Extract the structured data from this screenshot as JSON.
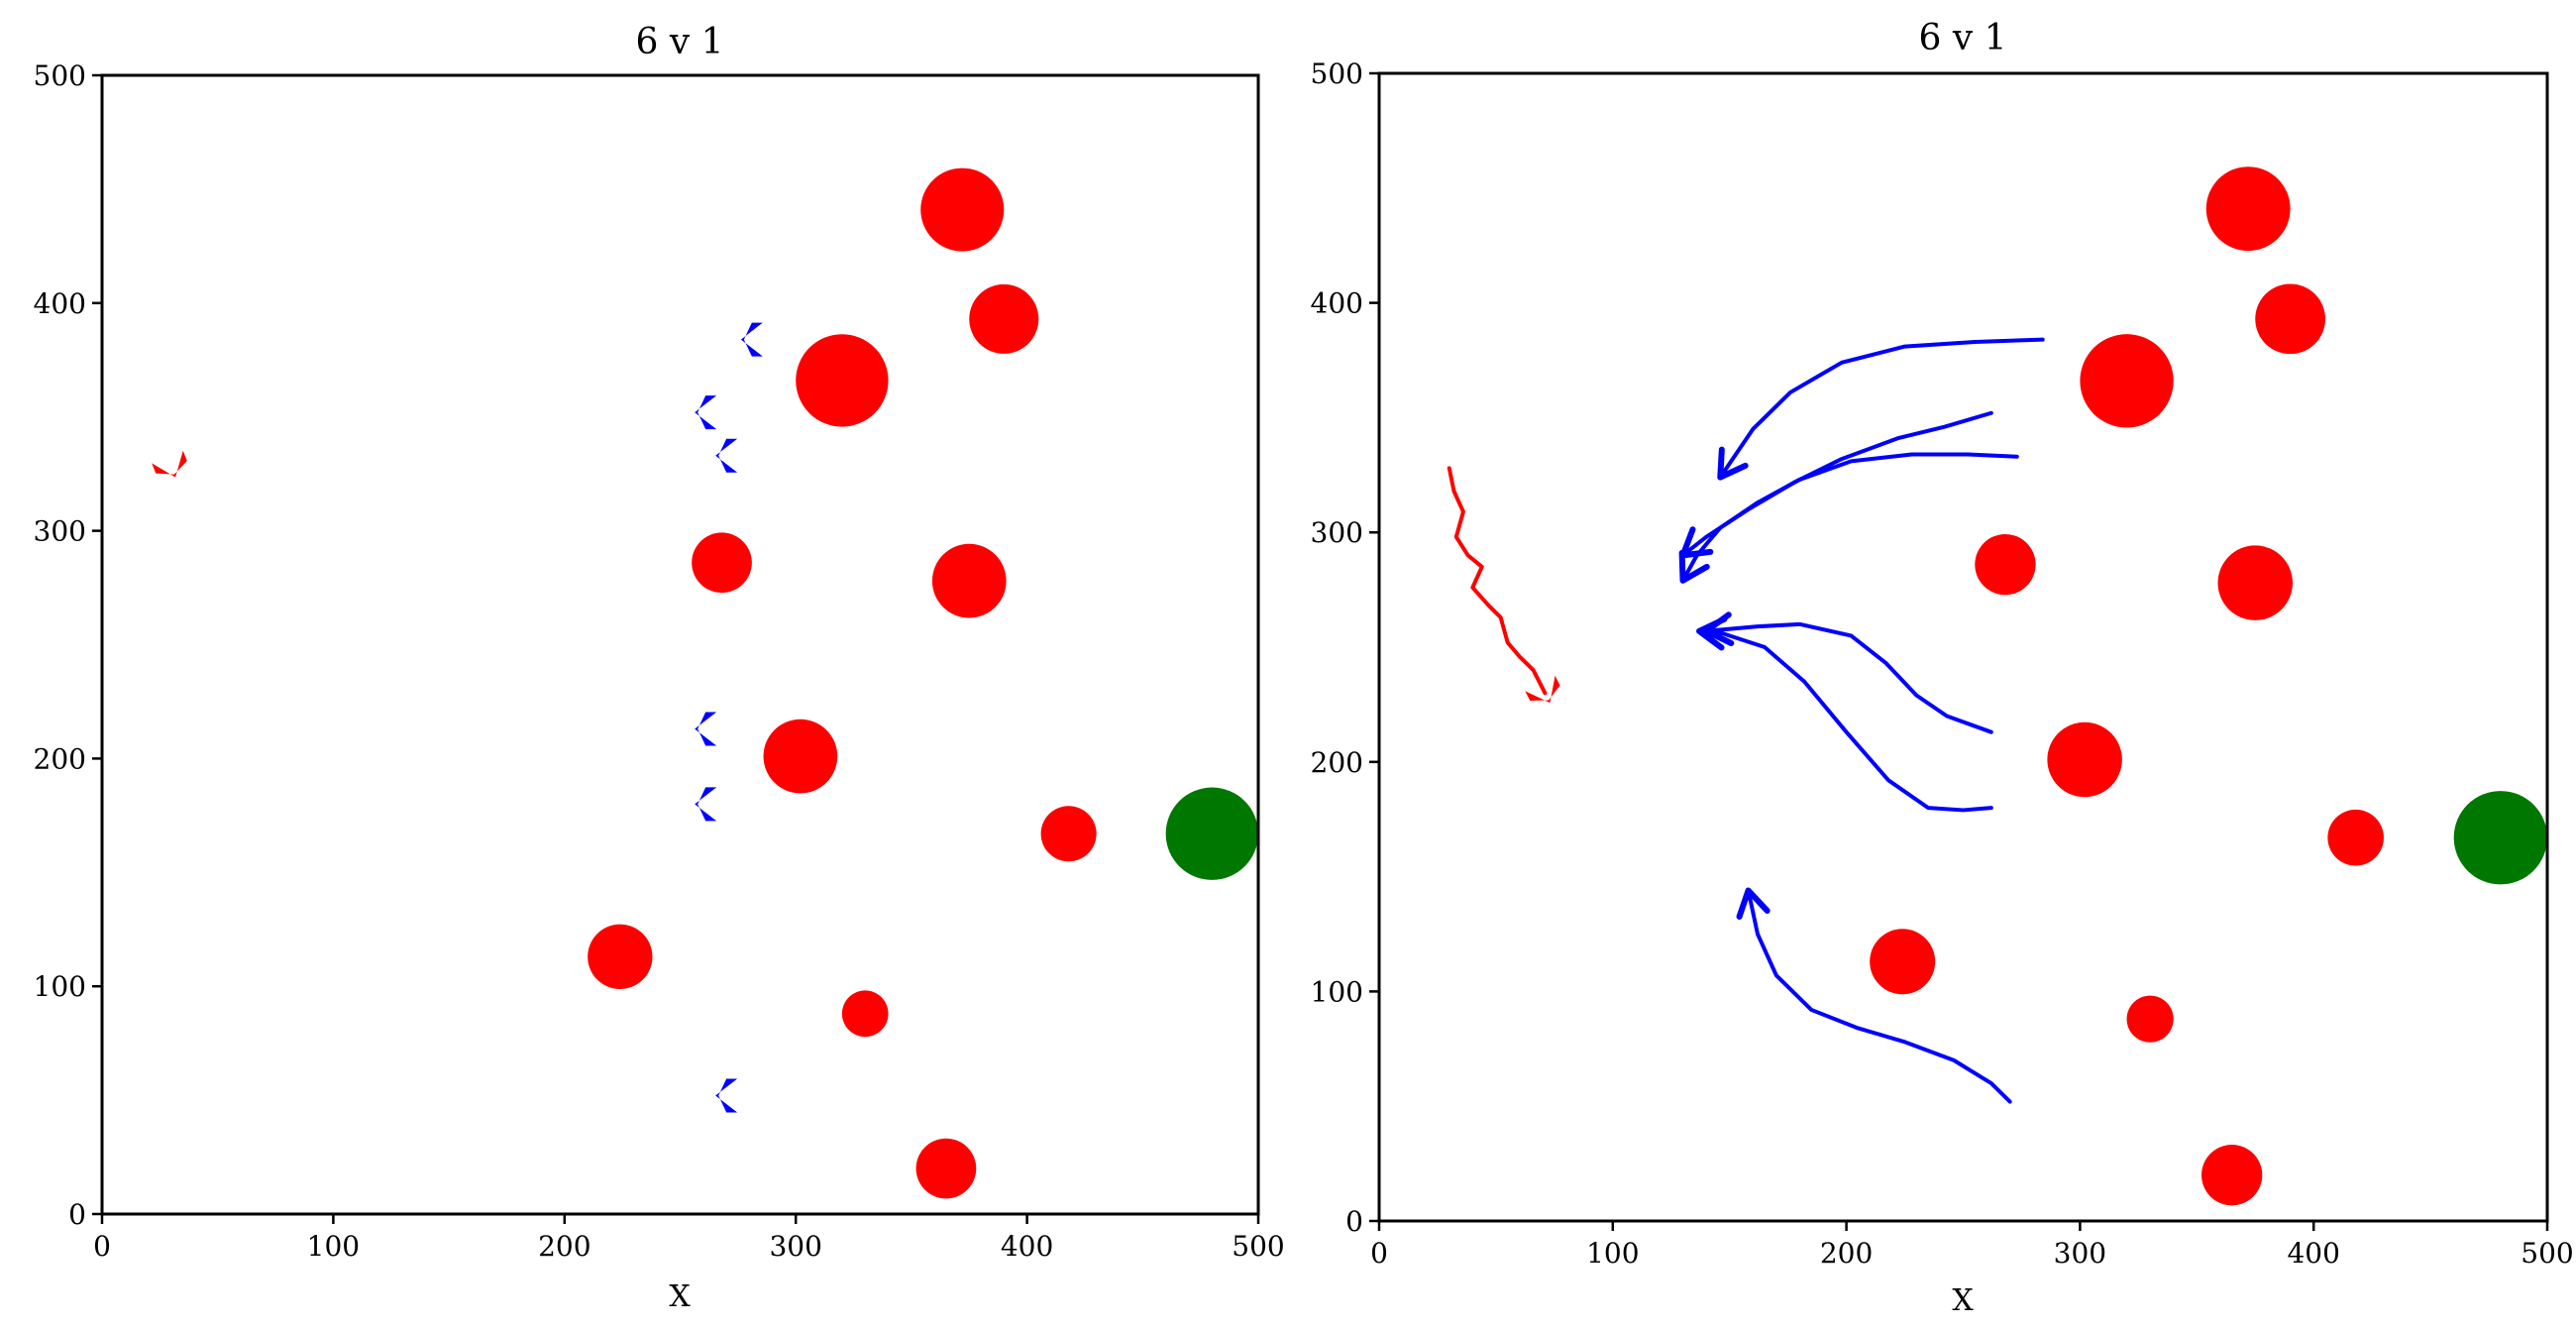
{
  "colors": {
    "obstacle": "#ff0000",
    "target": "#007800",
    "pursuer": "#0000ff",
    "evader": "#ff0000"
  },
  "chart_data": [
    {
      "type": "scatter",
      "title": "6 v 1",
      "xlabel": "X",
      "ylabel": "",
      "xlim": [
        0,
        500
      ],
      "ylim": [
        0,
        500
      ],
      "xticks": [
        "0",
        "100",
        "200",
        "300",
        "400",
        "500"
      ],
      "yticks": [
        "0",
        "100",
        "200",
        "300",
        "400",
        "500"
      ],
      "grid": false,
      "obstacles": [
        {
          "x": 372,
          "y": 441,
          "r": 18
        },
        {
          "x": 390,
          "y": 393,
          "r": 15
        },
        {
          "x": 320,
          "y": 366,
          "r": 20
        },
        {
          "x": 268,
          "y": 286,
          "r": 13
        },
        {
          "x": 375,
          "y": 278,
          "r": 16
        },
        {
          "x": 302,
          "y": 201,
          "r": 16
        },
        {
          "x": 418,
          "y": 167,
          "r": 12
        },
        {
          "x": 224,
          "y": 113,
          "r": 14
        },
        {
          "x": 330,
          "y": 88,
          "r": 10
        },
        {
          "x": 365,
          "y": 20,
          "r": 13
        }
      ],
      "target": {
        "x": 480,
        "y": 167,
        "r": 20
      },
      "pursuers": [
        {
          "x": 281,
          "y": 384
        },
        {
          "x": 261,
          "y": 352
        },
        {
          "x": 270,
          "y": 333
        },
        {
          "x": 261,
          "y": 213
        },
        {
          "x": 261,
          "y": 180
        },
        {
          "x": 270,
          "y": 52
        }
      ],
      "evader": {
        "x": 30,
        "y": 328
      },
      "trajectories": []
    },
    {
      "type": "scatter",
      "title": "6 v 1",
      "xlabel": "X",
      "ylabel": "",
      "xlim": [
        0,
        500
      ],
      "ylim": [
        0,
        500
      ],
      "xticks": [
        "0",
        "100",
        "200",
        "300",
        "400",
        "500"
      ],
      "yticks": [
        "0",
        "100",
        "200",
        "300",
        "400",
        "500"
      ],
      "grid": false,
      "obstacles": [
        {
          "x": 372,
          "y": 441,
          "r": 18
        },
        {
          "x": 390,
          "y": 393,
          "r": 15
        },
        {
          "x": 320,
          "y": 366,
          "r": 20
        },
        {
          "x": 268,
          "y": 286,
          "r": 13
        },
        {
          "x": 375,
          "y": 278,
          "r": 16
        },
        {
          "x": 302,
          "y": 201,
          "r": 16
        },
        {
          "x": 418,
          "y": 167,
          "r": 12
        },
        {
          "x": 224,
          "y": 113,
          "r": 14
        },
        {
          "x": 330,
          "y": 88,
          "r": 10
        },
        {
          "x": 365,
          "y": 20,
          "r": 13
        }
      ],
      "target": {
        "x": 480,
        "y": 167,
        "r": 20
      },
      "trajectories": [
        {
          "role": "pursuer",
          "points": [
            [
              284,
              384
            ],
            [
              255,
              383
            ],
            [
              225,
              381
            ],
            [
              198,
              374
            ],
            [
              176,
              361
            ],
            [
              160,
              345
            ],
            [
              152,
              333
            ],
            [
              146,
              324
            ]
          ]
        },
        {
          "role": "pursuer",
          "points": [
            [
              262,
              352
            ],
            [
              242,
              346
            ],
            [
              222,
              341
            ],
            [
              198,
              332
            ],
            [
              178,
              322
            ],
            [
              158,
              310
            ],
            [
              140,
              298
            ],
            [
              130,
              290
            ]
          ]
        },
        {
          "role": "pursuer",
          "points": [
            [
              273,
              333
            ],
            [
              252,
              334
            ],
            [
              228,
              334
            ],
            [
              202,
              331
            ],
            [
              180,
              323
            ],
            [
              162,
              313
            ],
            [
              146,
              302
            ],
            [
              136,
              290
            ],
            [
              130,
              279
            ]
          ]
        },
        {
          "role": "pursuer",
          "points": [
            [
              262,
              213
            ],
            [
              243,
              220
            ],
            [
              230,
              229
            ],
            [
              217,
              243
            ],
            [
              202,
              255
            ],
            [
              180,
              260
            ],
            [
              162,
              259
            ],
            [
              140,
              257
            ]
          ]
        },
        {
          "role": "pursuer",
          "points": [
            [
              262,
              180
            ],
            [
              250,
              179
            ],
            [
              235,
              180
            ],
            [
              218,
              192
            ],
            [
              200,
              213
            ],
            [
              182,
              235
            ],
            [
              165,
              250
            ],
            [
              147,
              256
            ],
            [
              137,
              257
            ]
          ]
        },
        {
          "role": "pursuer",
          "points": [
            [
              270,
              52
            ],
            [
              262,
              60
            ],
            [
              246,
              70
            ],
            [
              225,
              78
            ],
            [
              205,
              84
            ],
            [
              185,
              92
            ],
            [
              170,
              107
            ],
            [
              162,
              125
            ],
            [
              158,
              144
            ]
          ]
        },
        {
          "role": "evader",
          "points": [
            [
              30,
              328
            ],
            [
              32,
              318
            ],
            [
              36,
              309
            ],
            [
              33,
              298
            ],
            [
              38,
              290
            ],
            [
              44,
              285
            ],
            [
              40,
              276
            ],
            [
              47,
              268
            ],
            [
              52,
              263
            ],
            [
              55,
              252
            ],
            [
              60,
              246
            ],
            [
              66,
              240
            ],
            [
              69,
              234
            ],
            [
              71,
              230
            ]
          ]
        }
      ]
    }
  ]
}
